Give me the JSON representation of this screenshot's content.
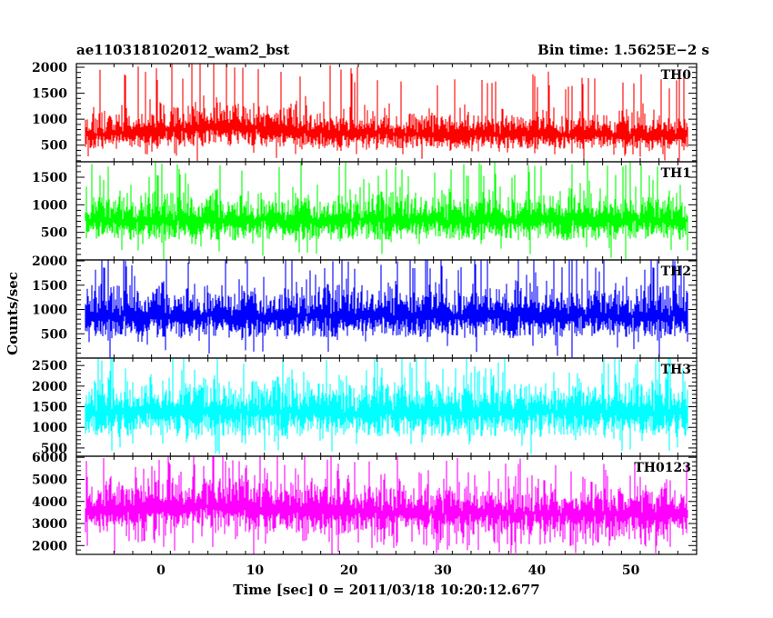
{
  "header": {
    "left_title": "ae110318102012_wam2_bst",
    "right_title": "Bin time: 1.5625E−2 s"
  },
  "chart_data": {
    "type": "line",
    "xlabel": "Time [sec] 0 = 2011/03/18 10:20:12.677",
    "ylabel": "Counts/sec",
    "xlim": [
      -9,
      57
    ],
    "x_ticks": [
      0,
      10,
      20,
      30,
      40,
      50
    ],
    "x_range_data": [
      -8,
      56
    ],
    "grid": false,
    "panels": [
      {
        "name": "TH0",
        "color": "#ff0000",
        "ylim": [
          180,
          2070
        ],
        "yticks": [
          500,
          1000,
          1500,
          2000
        ],
        "profile": [
          [
            -8,
            700,
            170,
            600,
            1750
          ],
          [
            0,
            780,
            190,
            650,
            1900
          ],
          [
            5,
            840,
            200,
            680,
            2050
          ],
          [
            10,
            830,
            200,
            680,
            2000
          ],
          [
            15,
            760,
            180,
            630,
            1900
          ],
          [
            25,
            720,
            170,
            600,
            1800
          ],
          [
            40,
            710,
            170,
            600,
            1750
          ],
          [
            56,
            690,
            170,
            590,
            1700
          ]
        ]
      },
      {
        "name": "TH1",
        "color": "#00ff00",
        "ylim": [
          0,
          1780
        ],
        "yticks": [
          500,
          1000,
          1500
        ],
        "profile": [
          [
            -8,
            720,
            200,
            600,
            1650
          ],
          [
            56,
            720,
            200,
            600,
            1650
          ]
        ]
      },
      {
        "name": "TH2",
        "color": "#0000ff",
        "ylim": [
          0,
          2020
        ],
        "yticks": [
          500,
          1000,
          1500,
          2000
        ],
        "profile": [
          [
            -8,
            870,
            250,
            720,
            2000
          ],
          [
            56,
            870,
            250,
            720,
            2000
          ]
        ]
      },
      {
        "name": "TH3",
        "color": "#00ffff",
        "ylim": [
          300,
          2680
        ],
        "yticks": [
          500,
          1000,
          1500,
          2000,
          2500
        ],
        "profile": [
          [
            -8,
            1370,
            330,
            1100,
            2650
          ],
          [
            56,
            1370,
            330,
            1100,
            2650
          ]
        ]
      },
      {
        "name": "TH0123",
        "color": "#ff00ff",
        "ylim": [
          1600,
          6050
        ],
        "yticks": [
          2000,
          3000,
          4000,
          5000,
          6000
        ],
        "profile": [
          [
            -8,
            3500,
            580,
            2200,
            5600
          ],
          [
            0,
            3750,
            600,
            2400,
            5900
          ],
          [
            8,
            3800,
            600,
            2450,
            6000
          ],
          [
            15,
            3600,
            580,
            2300,
            5700
          ],
          [
            30,
            3450,
            560,
            2200,
            5500
          ],
          [
            56,
            3400,
            560,
            2150,
            5400
          ]
        ]
      }
    ]
  }
}
